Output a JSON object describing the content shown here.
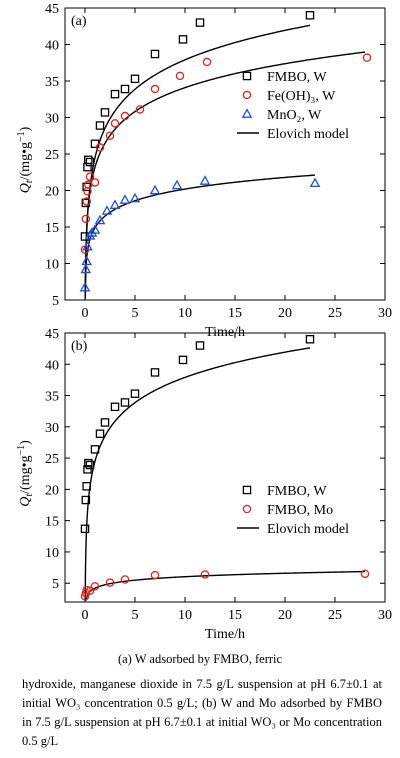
{
  "chart_data": [
    {
      "type": "scatter",
      "panel_label": "(a)",
      "xlabel": "Time/h",
      "ylabel": "Q_t/(mg•g⁻¹)",
      "xlim": [
        -2,
        30
      ],
      "ylim": [
        5,
        45
      ],
      "xticks": [
        0,
        5,
        10,
        15,
        20,
        25,
        30
      ],
      "yticks": [
        5,
        10,
        15,
        20,
        25,
        30,
        35,
        40,
        45
      ],
      "legend_position": "right-middle",
      "series": [
        {
          "name": "FMBO, W",
          "marker": "square",
          "color": "#000000",
          "points": [
            [
              0,
              13.7
            ],
            [
              0.083,
              18.3
            ],
            [
              0.167,
              20.5
            ],
            [
              0.25,
              23.2
            ],
            [
              0.33,
              24.2
            ],
            [
              0.5,
              23.9
            ],
            [
              1,
              26.4
            ],
            [
              1.5,
              28.9
            ],
            [
              2,
              30.7
            ],
            [
              3,
              33.2
            ],
            [
              4,
              33.9
            ],
            [
              5,
              35.3
            ],
            [
              7,
              38.7
            ],
            [
              9.8,
              40.7
            ],
            [
              11.5,
              43.0
            ],
            [
              22.5,
              44.0
            ]
          ]
        },
        {
          "name": "Fe(OH)₃, W",
          "marker": "circle",
          "color": "#d9231f",
          "points": [
            [
              0,
              11.9
            ],
            [
              0.083,
              16.1
            ],
            [
              0.167,
              18.5
            ],
            [
              0.25,
              19.9
            ],
            [
              0.33,
              20.8
            ],
            [
              0.5,
              21.9
            ],
            [
              1,
              21.1
            ],
            [
              1.5,
              25.9
            ],
            [
              2.5,
              27.5
            ],
            [
              3,
              29.2
            ],
            [
              4,
              30.2
            ],
            [
              5.5,
              31.1
            ],
            [
              7,
              33.9
            ],
            [
              9.5,
              35.7
            ],
            [
              12.2,
              37.6
            ],
            [
              28.2,
              38.2
            ]
          ]
        },
        {
          "name": "MnO₂, W",
          "marker": "triangle",
          "color": "#1f4fd8",
          "points": [
            [
              0,
              6.7
            ],
            [
              0.083,
              9.2
            ],
            [
              0.167,
              10.3
            ],
            [
              0.25,
              12.3
            ],
            [
              0.5,
              13.8
            ],
            [
              0.7,
              14.2
            ],
            [
              1,
              14.6
            ],
            [
              1.5,
              15.9
            ],
            [
              2.2,
              17.2
            ],
            [
              3,
              18.0
            ],
            [
              4,
              18.7
            ],
            [
              5,
              18.9
            ],
            [
              7,
              20.0
            ],
            [
              9.2,
              20.7
            ],
            [
              12,
              21.3
            ],
            [
              23,
              21.0
            ]
          ]
        },
        {
          "name": "Elovich model",
          "marker": "line",
          "color": "#000000",
          "curves": [
            {
              "for": "FMBO, W",
              "a": 24.5,
              "b": 5.82
            },
            {
              "for": "Fe(OH)₃, W",
              "a": 23.2,
              "b": 4.73
            },
            {
              "for": "MnO₂, W",
              "a": 14.9,
              "b": 2.3
            }
          ]
        }
      ]
    },
    {
      "type": "scatter",
      "panel_label": "(b)",
      "xlabel": "Time/h",
      "ylabel": "Q_t/(mg•g⁻¹)",
      "xlim": [
        -2,
        30
      ],
      "ylim": [
        2,
        45
      ],
      "xticks": [
        0,
        5,
        10,
        15,
        20,
        25,
        30
      ],
      "yticks": [
        5,
        10,
        15,
        20,
        25,
        30,
        35,
        40,
        45
      ],
      "legend_position": "right-middle",
      "series": [
        {
          "name": "FMBO, W",
          "marker": "square",
          "color": "#000000",
          "points": [
            [
              0,
              13.7
            ],
            [
              0.083,
              18.3
            ],
            [
              0.167,
              20.5
            ],
            [
              0.25,
              23.2
            ],
            [
              0.33,
              24.2
            ],
            [
              0.5,
              23.9
            ],
            [
              1,
              26.4
            ],
            [
              1.5,
              28.9
            ],
            [
              2,
              30.7
            ],
            [
              3,
              33.2
            ],
            [
              4,
              33.9
            ],
            [
              5,
              35.3
            ],
            [
              7,
              38.7
            ],
            [
              9.8,
              40.7
            ],
            [
              11.5,
              43.0
            ],
            [
              22.5,
              44.0
            ]
          ]
        },
        {
          "name": "FMBO, Mo",
          "marker": "circle",
          "color": "#d9231f",
          "points": [
            [
              0,
              2.9
            ],
            [
              0.083,
              3.4
            ],
            [
              0.167,
              3.9
            ],
            [
              0.5,
              3.8
            ],
            [
              1,
              4.5
            ],
            [
              2.5,
              5.1
            ],
            [
              4,
              5.6
            ],
            [
              7,
              6.3
            ],
            [
              12,
              6.4
            ],
            [
              28,
              6.5
            ]
          ]
        },
        {
          "name": "Elovich model",
          "marker": "line",
          "color": "#000000",
          "curves": [
            {
              "for": "FMBO, W",
              "a": 24.5,
              "b": 5.82
            },
            {
              "for": "FMBO, Mo",
              "a": 4.2,
              "b": 0.8
            }
          ]
        }
      ]
    }
  ],
  "caption": {
    "title": "(a) W adsorbed by FMBO, ferric",
    "body": "hydroxide, manganese dioxide in 7.5 g/L suspension at pH 6.7±0.1 at initial WO₃ concentration 0.5 g/L; (b) W and Mo adsorbed by FMBO in 7.5 g/L suspension at pH 6.7±0.1 at initial WO₃ or Mo concentration 0.5 g/L"
  }
}
